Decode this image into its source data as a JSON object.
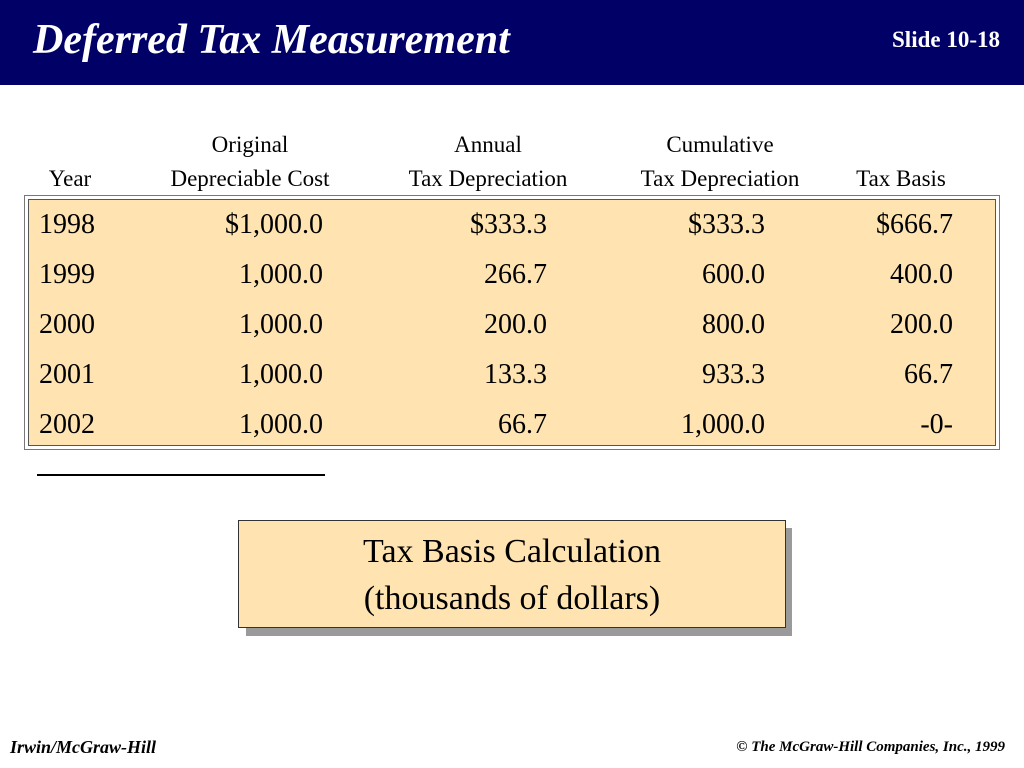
{
  "slide": {
    "title": "Deferred Tax Measurement",
    "number": "Slide 10-18"
  },
  "table": {
    "headers": [
      {
        "line1": "",
        "line2": "Year"
      },
      {
        "line1": "Original",
        "line2": "Depreciable Cost"
      },
      {
        "line1": "Annual",
        "line2": "Tax Depreciation"
      },
      {
        "line1": "Cumulative",
        "line2": "Tax Depreciation"
      },
      {
        "line1": "",
        "line2": "Tax Basis"
      }
    ],
    "rows": [
      [
        "1998",
        "$1,000.0",
        "$333.3",
        "$333.3",
        "$666.7"
      ],
      [
        "1999",
        "1,000.0",
        "266.7",
        "600.0",
        "400.0"
      ],
      [
        "2000",
        "1,000.0",
        "200.0",
        "800.0",
        "200.0"
      ],
      [
        "2001",
        "1,000.0",
        "133.3",
        "933.3",
        "66.7"
      ],
      [
        "2002",
        "1,000.0",
        "66.7",
        "1,000.0",
        "-0-"
      ]
    ]
  },
  "caption": {
    "line1": "Tax Basis Calculation",
    "line2": "(thousands of dollars)"
  },
  "footer": {
    "left": "Irwin/McGraw-Hill",
    "right": "© The McGraw-Hill Companies, Inc., 1999"
  },
  "colors": {
    "header_bg": "#000066",
    "table_bg": "#ffe4b2",
    "caption_bg": "#ffe4b2"
  }
}
